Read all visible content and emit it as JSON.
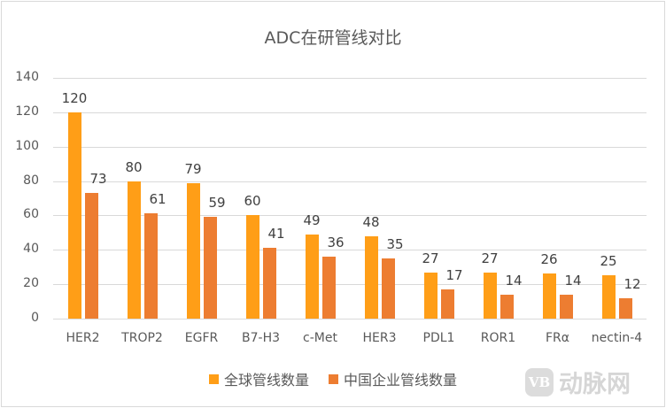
{
  "chart_data": {
    "type": "bar",
    "title": "ADC在研管线对比",
    "categories": [
      "HER2",
      "TROP2",
      "EGFR",
      "B7-H3",
      "c-Met",
      "HER3",
      "PDL1",
      "ROR1",
      "FRα",
      "nectin-4"
    ],
    "series": [
      {
        "name": "全球管线数量",
        "color": "#ff9e17",
        "values": [
          120,
          80,
          79,
          60,
          49,
          48,
          27,
          27,
          26,
          25
        ]
      },
      {
        "name": "中国企业管线数量",
        "color": "#ed7d31",
        "values": [
          73,
          61,
          59,
          41,
          36,
          35,
          17,
          14,
          14,
          12
        ]
      }
    ],
    "xlabel": "",
    "ylabel": "",
    "ylim": [
      0,
      140
    ],
    "yticks": [
      0,
      20,
      40,
      60,
      80,
      100,
      120,
      140
    ],
    "grid": true,
    "legend_position": "bottom",
    "data_labels": true
  },
  "watermark": {
    "logo": "VB",
    "text": "动脉网"
  }
}
